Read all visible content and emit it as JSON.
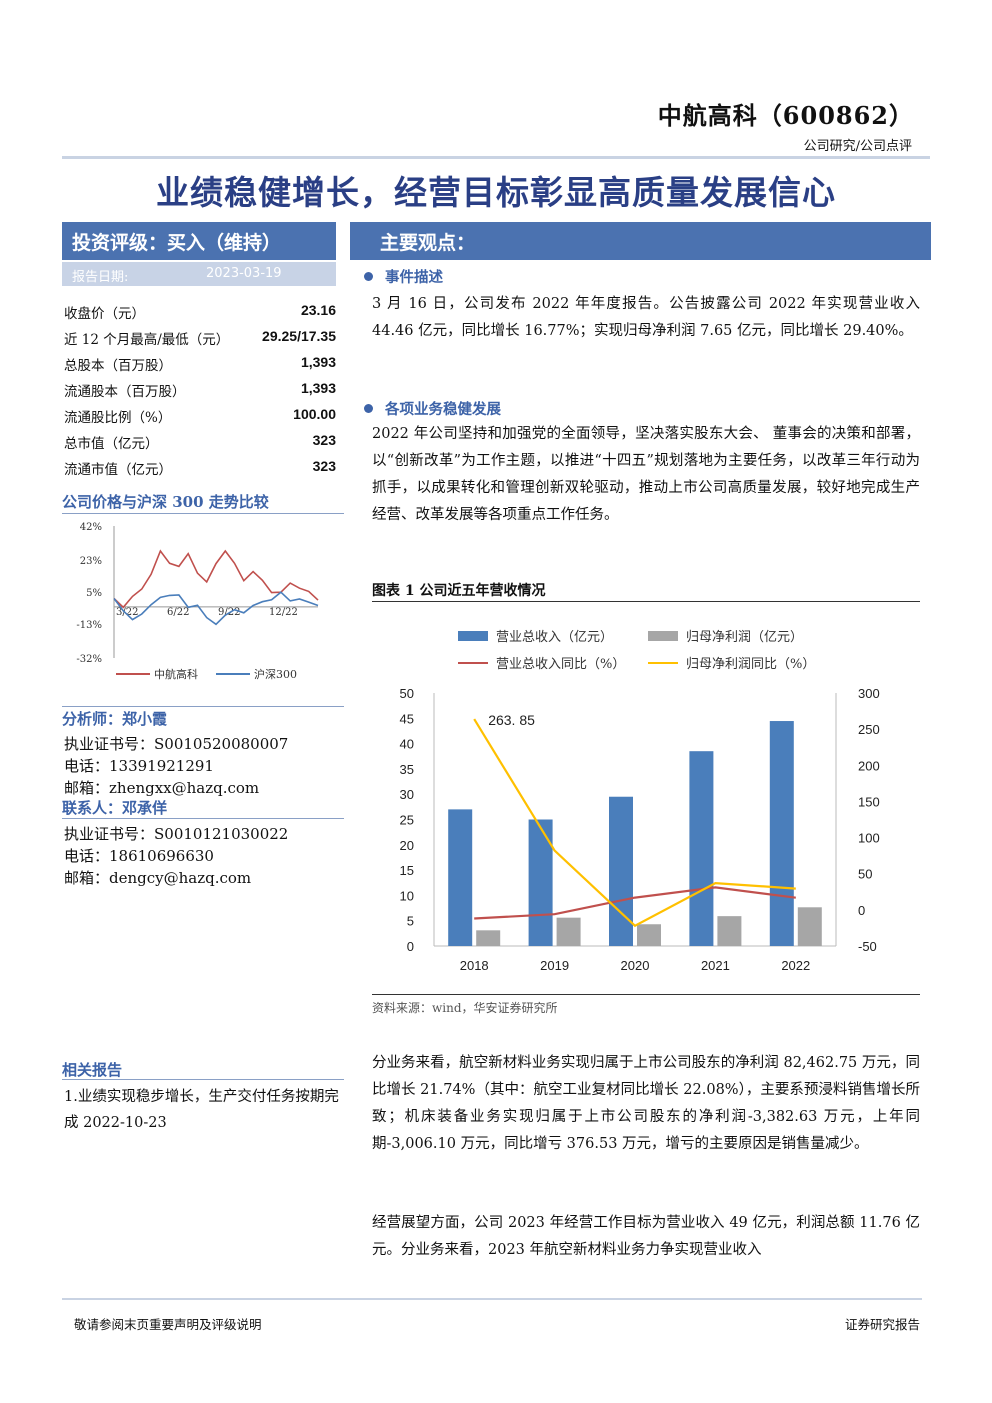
{
  "header": {
    "company": "中航高科（600862）",
    "category": "公司研究/公司点评"
  },
  "main_title": "业绩稳健增长，经营目标彰显高质量发展信心",
  "sidebar": {
    "rating": "投资评级：买入（维持）",
    "report_date_label": "报告日期:",
    "report_date": "2023-03-19",
    "stats": [
      {
        "label": "收盘价（元）",
        "value": "23.16"
      },
      {
        "label": "近 12 个月最高/最低（元）",
        "value": "29.25/17.35"
      },
      {
        "label": "总股本（百万股）",
        "value": "1,393"
      },
      {
        "label": "流通股本（百万股）",
        "value": "1,393"
      },
      {
        "label": "流通股比例（%）",
        "value": "100.00"
      },
      {
        "label": "总市值（亿元）",
        "value": "323"
      },
      {
        "label": "流通市值（亿元）",
        "value": "323"
      }
    ],
    "price_chart_title": "公司价格与沪深 300 走势比较",
    "analyst_heading": "分析师：郑小霞",
    "analyst_cert": "执业证书号：S0010520080007",
    "analyst_phone": "电话：13391921291",
    "analyst_email": "邮箱：zhengxx@hazq.com",
    "contact_heading": "联系人：邓承佯",
    "contact_cert": "执业证书号：S0010121030022",
    "contact_phone": "电话：18610696630",
    "contact_email": "邮箱：dengcy@hazq.com",
    "related_heading": "相关报告",
    "related_items": [
      "1.业绩实现稳步增长，生产交付任务按期完成 2022-10-23"
    ]
  },
  "main": {
    "heading": "主要观点：",
    "section1_title": "事件描述",
    "section1_text": "3 月 16 日，公司发布 2022 年年度报告。公告披露公司 2022 年实现营业收入 44.46 亿元，同比增长 16.77%；实现归母净利润 7.65 亿元，同比增长 29.40%。",
    "section2_title": "各项业务稳健发展",
    "section2_text": "2022 年公司坚持和加强党的全面领导，坚决落实股东大会、 董事会的决策和部署，以“创新改革”为工作主题，以推进“十四五”规划落地为主要任务，以改革三年行动为抓手，以成果转化和管理创新双轮驱动，推动上市公司高质量发展，较好地完成生产经营、改革发展等各项重点工作任务。",
    "figure_title": "图表 1 公司近五年营收情况",
    "figure_source": "资料来源：wind，华安证券研究所",
    "para3": "分业务来看，航空新材料业务实现归属于上市公司股东的净利润 82,462.75 万元，同比增长 21.74%（其中：航空工业复材同比增长 22.08%），主要系预浸料销售增长所致；机床装备业务实现归属于上市公司股东的净利润-3,382.63 万元，上年同期-3,006.10 万元，同比增亏 376.53 万元，增亏的主要原因是销售量减少。",
    "para4": "经营展望方面，公司 2023 年经营工作目标为营业收入 49 亿元，利润总额 11.76 亿元。分业务来看，2023 年航空新材料业务力争实现营业收入"
  },
  "footer": {
    "left": "敬请参阅末页重要声明及评级说明",
    "right": "证券研究报告"
  },
  "chart_data": [
    {
      "type": "line",
      "title": "公司价格与沪深 300 走势比较",
      "x_ticks": [
        "3/22",
        "6/22",
        "9/22",
        "12/22"
      ],
      "y_ticks": [
        "42%",
        "23%",
        "5%",
        "-13%",
        "-32%"
      ],
      "ylim": [
        -32,
        42
      ],
      "series": [
        {
          "name": "中航高科",
          "color": "#c0504d",
          "values": [
            0,
            -4,
            3,
            8,
            14,
            28,
            22,
            18,
            26,
            16,
            12,
            20,
            28,
            22,
            10,
            16,
            12,
            6,
            4,
            10,
            8,
            4,
            0
          ]
        },
        {
          "name": "沪深300",
          "color": "#4a7ebb",
          "values": [
            0,
            -6,
            -10,
            -6,
            -3,
            2,
            4,
            2,
            -4,
            -2,
            -8,
            -14,
            -8,
            -4,
            -8,
            -3,
            0,
            2,
            4,
            0,
            2,
            -2,
            -3
          ]
        }
      ]
    },
    {
      "type": "bar",
      "categories": [
        "2018",
        "2019",
        "2020",
        "2021",
        "2022"
      ],
      "series": [
        {
          "name": "营业总收入（亿元）",
          "type": "bar",
          "axis": "left",
          "color": "#4a7ebb",
          "values": [
            27.0,
            25.0,
            29.5,
            38.5,
            44.46
          ]
        },
        {
          "name": "归母净利润（亿元）",
          "type": "bar",
          "axis": "left",
          "color": "#a6a6a6",
          "values": [
            3.1,
            5.6,
            4.3,
            5.9,
            7.65
          ]
        },
        {
          "name": "营业总收入同比（%）",
          "type": "line",
          "axis": "right",
          "color": "#c0504d",
          "values": [
            -12,
            -6,
            17,
            31,
            16.77
          ]
        },
        {
          "name": "归母净利润同比（%）",
          "type": "line",
          "axis": "right",
          "color": "#ffc000",
          "values": [
            263.85,
            82,
            -22,
            37,
            29.4
          ]
        }
      ],
      "annotation": "263. 85",
      "ylim_left": [
        0,
        50
      ],
      "ylim_right": [
        -50,
        300
      ],
      "left_ticks": [
        0,
        5,
        10,
        15,
        20,
        25,
        30,
        35,
        40,
        45,
        50
      ],
      "right_ticks": [
        -50,
        0,
        50,
        100,
        150,
        200,
        250,
        300
      ],
      "legend_position": "top"
    }
  ]
}
